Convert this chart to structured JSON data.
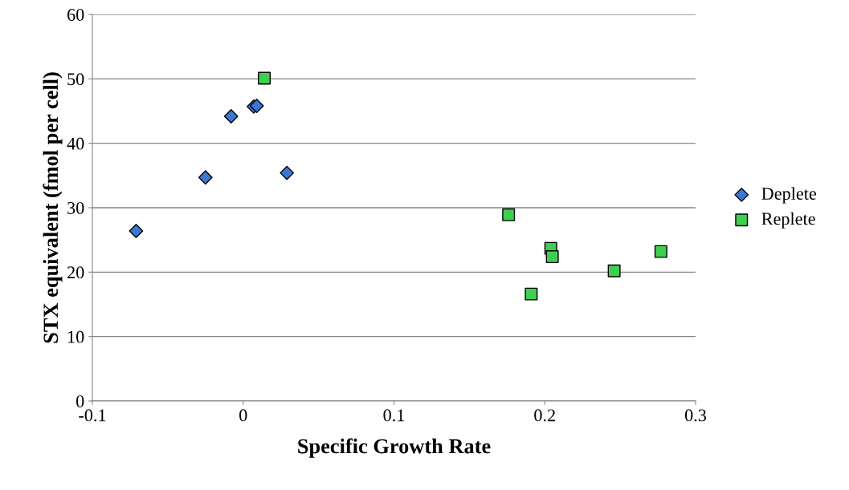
{
  "chart_data": {
    "type": "scatter",
    "xlabel": "Specific Growth Rate",
    "ylabel": "STX equivalent (fmol per cell)",
    "xlim": [
      -0.1,
      0.3
    ],
    "xticks": [
      -0.1,
      0,
      0.1,
      0.2,
      0.3
    ],
    "ylim": [
      0,
      60
    ],
    "yticks": [
      0,
      10,
      20,
      30,
      40,
      50,
      60
    ],
    "grid": "y",
    "legend": "right",
    "series": [
      {
        "name": "Deplete",
        "color": "#3a78d4",
        "marker": "diamond",
        "x": [
          -0.071,
          -0.025,
          -0.008,
          0.007,
          0.009,
          0.029
        ],
        "values": [
          26.4,
          34.7,
          44.2,
          45.7,
          45.8,
          35.4
        ]
      },
      {
        "name": "Replete",
        "color": "#3fcf4f",
        "marker": "square",
        "x": [
          0.014,
          0.176,
          0.204,
          0.205,
          0.191,
          0.246,
          0.277
        ],
        "values": [
          50.1,
          28.9,
          23.7,
          22.4,
          16.6,
          20.2,
          23.2
        ]
      }
    ]
  }
}
